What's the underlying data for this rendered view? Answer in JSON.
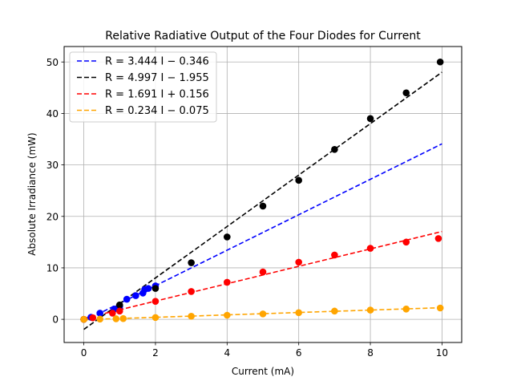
{
  "chart_data": {
    "type": "scatter",
    "title": "Relative Radiative Output of the Four Diodes for Current",
    "xlabel": "Current (mA)",
    "ylabel": "Absolute Irradiance (mW)",
    "xlim": [
      -0.55,
      10.55
    ],
    "ylim": [
      -4.5,
      53.0
    ],
    "x_ticks": [
      0,
      2,
      4,
      6,
      8,
      10
    ],
    "y_ticks": [
      0,
      10,
      20,
      30,
      40,
      50
    ],
    "grid": true,
    "legend_position": "upper-left",
    "series": [
      {
        "name": "R = 3.444 I − 0.346",
        "color": "#0000ff",
        "fit": {
          "slope": 3.444,
          "intercept": -0.346,
          "x_range": [
            0,
            10
          ]
        },
        "points": [
          [
            0,
            0
          ],
          [
            0.2,
            0.4
          ],
          [
            0.45,
            1.2
          ],
          [
            0.85,
            2.0
          ],
          [
            1.0,
            2.5
          ],
          [
            1.2,
            3.9
          ],
          [
            1.45,
            4.6
          ],
          [
            1.65,
            5.1
          ],
          [
            1.7,
            5.8
          ],
          [
            1.8,
            6.0
          ],
          [
            2.0,
            6.5
          ]
        ]
      },
      {
        "name": "R = 4.997 I − 1.955",
        "color": "#000000",
        "fit": {
          "slope": 4.997,
          "intercept": -1.955,
          "x_range": [
            0,
            10
          ]
        },
        "points": [
          [
            0,
            0
          ],
          [
            1.0,
            2.8
          ],
          [
            2.0,
            6.0
          ],
          [
            3.0,
            11.0
          ],
          [
            4.0,
            16.0
          ],
          [
            5.0,
            22.0
          ],
          [
            6.0,
            27.0
          ],
          [
            7.0,
            33.0
          ],
          [
            8.0,
            39.0
          ],
          [
            9.0,
            44.0
          ],
          [
            9.95,
            50.0
          ]
        ]
      },
      {
        "name": "R = 1.691 I + 0.156",
        "color": "#ff0000",
        "fit": {
          "slope": 1.691,
          "intercept": 0.156,
          "x_range": [
            0,
            10
          ]
        },
        "points": [
          [
            0,
            0
          ],
          [
            0.25,
            0.3
          ],
          [
            0.8,
            1.2
          ],
          [
            1.0,
            1.6
          ],
          [
            2.0,
            3.5
          ],
          [
            3.0,
            5.4
          ],
          [
            4.0,
            7.2
          ],
          [
            5.0,
            9.2
          ],
          [
            6.0,
            11.1
          ],
          [
            7.0,
            12.5
          ],
          [
            8.0,
            13.8
          ],
          [
            9.0,
            15.0
          ],
          [
            9.9,
            15.7
          ]
        ]
      },
      {
        "name": "R = 0.234 I − 0.075",
        "color": "#ffa500",
        "fit": {
          "slope": 0.234,
          "intercept": -0.075,
          "x_range": [
            0,
            10
          ]
        },
        "points": [
          [
            0,
            0
          ],
          [
            0.45,
            0.05
          ],
          [
            0.9,
            0.1
          ],
          [
            1.1,
            0.15
          ],
          [
            2.0,
            0.35
          ],
          [
            3.0,
            0.6
          ],
          [
            4.0,
            0.8
          ],
          [
            5.0,
            1.05
          ],
          [
            6.0,
            1.3
          ],
          [
            7.0,
            1.6
          ],
          [
            8.0,
            1.8
          ],
          [
            9.0,
            2.0
          ],
          [
            9.95,
            2.2
          ]
        ]
      }
    ]
  }
}
